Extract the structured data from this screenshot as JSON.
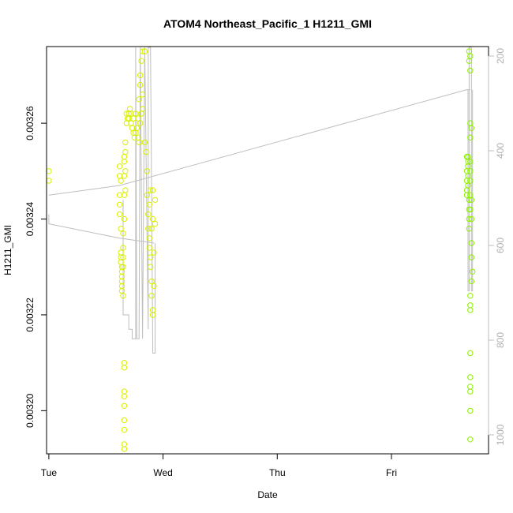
{
  "chart_data": {
    "type": "scatter",
    "title": "ATOM4 Northeast_Pacific_1 H1211_GMI",
    "xlabel": "Date",
    "ylabel": "H1211_GMI",
    "x_ticks": [
      "Tue",
      "Wed",
      "Thu",
      "Fri"
    ],
    "xlim_days": [
      -0.02,
      3.85
    ],
    "ylim": [
      0.003191,
      0.003276
    ],
    "y_ticks": [
      0.0032,
      0.00322,
      0.00324,
      0.00326
    ],
    "y_tick_labels": [
      "0.00320",
      "0.00322",
      "0.00324",
      "0.00326"
    ],
    "right_axis": {
      "lim": [
        1040,
        180
      ],
      "ticks": [
        200,
        400,
        600,
        800,
        1000
      ],
      "color": "#bebebe"
    },
    "points_wed": [
      [
        0.0,
        0.003248
      ],
      [
        0.0,
        0.00325
      ],
      [
        0.62,
        0.003251
      ],
      [
        0.62,
        0.003249
      ],
      [
        0.62,
        0.003245
      ],
      [
        0.62,
        0.003243
      ],
      [
        0.62,
        0.003241
      ],
      [
        0.63,
        0.003248
      ],
      [
        0.63,
        0.003238
      ],
      [
        0.63,
        0.003233
      ],
      [
        0.63,
        0.003232
      ],
      [
        0.63,
        0.003231
      ],
      [
        0.64,
        0.00323
      ],
      [
        0.64,
        0.003229
      ],
      [
        0.64,
        0.003228
      ],
      [
        0.64,
        0.003227
      ],
      [
        0.64,
        0.003226
      ],
      [
        0.64,
        0.003225
      ],
      [
        0.65,
        0.003224
      ],
      [
        0.65,
        0.00323
      ],
      [
        0.65,
        0.003232
      ],
      [
        0.65,
        0.003234
      ],
      [
        0.65,
        0.003237
      ],
      [
        0.66,
        0.00324
      ],
      [
        0.66,
        0.003245
      ],
      [
        0.66,
        0.003249
      ],
      [
        0.66,
        0.003252
      ],
      [
        0.66,
        0.003253
      ],
      [
        0.66,
        0.00321
      ],
      [
        0.66,
        0.003209
      ],
      [
        0.66,
        0.003204
      ],
      [
        0.66,
        0.003203
      ],
      [
        0.66,
        0.003201
      ],
      [
        0.66,
        0.003198
      ],
      [
        0.66,
        0.003196
      ],
      [
        0.66,
        0.003193
      ],
      [
        0.66,
        0.003192
      ],
      [
        0.67,
        0.003246
      ],
      [
        0.67,
        0.00325
      ],
      [
        0.67,
        0.003254
      ],
      [
        0.67,
        0.003256
      ],
      [
        0.68,
        0.00326
      ],
      [
        0.68,
        0.003262
      ],
      [
        0.69,
        0.003261
      ],
      [
        0.7,
        0.003262
      ],
      [
        0.71,
        0.003263
      ],
      [
        0.72,
        0.003262
      ],
      [
        0.73,
        0.003259
      ],
      [
        0.74,
        0.003258
      ],
      [
        0.75,
        0.003257
      ],
      [
        0.76,
        0.003258
      ],
      [
        0.77,
        0.003259
      ],
      [
        0.78,
        0.003257
      ],
      [
        0.79,
        0.003256
      ],
      [
        0.8,
        0.00326
      ],
      [
        0.81,
        0.003262
      ],
      [
        0.82,
        0.003263
      ],
      [
        0.7,
        0.003261
      ],
      [
        0.72,
        0.00326
      ],
      [
        0.74,
        0.003261
      ],
      [
        0.76,
        0.003262
      ],
      [
        0.78,
        0.003261
      ],
      [
        0.79,
        0.003265
      ],
      [
        0.8,
        0.00327
      ],
      [
        0.81,
        0.003273
      ],
      [
        0.82,
        0.003275
      ],
      [
        0.84,
        0.003275
      ],
      [
        0.8,
        0.003268
      ],
      [
        0.82,
        0.003266
      ],
      [
        0.84,
        0.003256
      ],
      [
        0.85,
        0.003254
      ],
      [
        0.86,
        0.00325
      ],
      [
        0.86,
        0.003245
      ],
      [
        0.87,
        0.003241
      ],
      [
        0.87,
        0.003238
      ],
      [
        0.88,
        0.003236
      ],
      [
        0.88,
        0.003234
      ],
      [
        0.89,
        0.003232
      ],
      [
        0.89,
        0.00323
      ],
      [
        0.9,
        0.003227
      ],
      [
        0.9,
        0.003224
      ],
      [
        0.91,
        0.003221
      ],
      [
        0.91,
        0.00322
      ],
      [
        0.88,
        0.003243
      ],
      [
        0.89,
        0.003246
      ],
      [
        0.9,
        0.003238
      ],
      [
        0.91,
        0.003246
      ],
      [
        0.91,
        0.00324
      ],
      [
        0.92,
        0.003233
      ],
      [
        0.92,
        0.003226
      ],
      [
        0.93,
        0.003244
      ],
      [
        0.93,
        0.003239
      ]
    ],
    "points_fri": [
      [
        3.66,
        0.003253
      ],
      [
        3.66,
        0.00325
      ],
      [
        3.66,
        0.003248
      ],
      [
        3.66,
        0.003246
      ],
      [
        3.66,
        0.003245
      ],
      [
        3.67,
        0.003253
      ],
      [
        3.67,
        0.003252
      ],
      [
        3.67,
        0.003251
      ],
      [
        3.67,
        0.003249
      ],
      [
        3.67,
        0.003247
      ],
      [
        3.68,
        0.003244
      ],
      [
        3.68,
        0.003242
      ],
      [
        3.68,
        0.00324
      ],
      [
        3.68,
        0.003238
      ],
      [
        3.69,
        0.003252
      ],
      [
        3.69,
        0.00325
      ],
      [
        3.69,
        0.003248
      ],
      [
        3.69,
        0.003245
      ],
      [
        3.69,
        0.003242
      ],
      [
        3.7,
        0.003244
      ],
      [
        3.7,
        0.00324
      ],
      [
        3.68,
        0.003275
      ],
      [
        3.69,
        0.003274
      ],
      [
        3.68,
        0.003273
      ],
      [
        3.69,
        0.003271
      ],
      [
        3.69,
        0.00326
      ],
      [
        3.7,
        0.003259
      ],
      [
        3.69,
        0.003257
      ],
      [
        3.7,
        0.003235
      ],
      [
        3.7,
        0.003232
      ],
      [
        3.71,
        0.003229
      ],
      [
        3.7,
        0.003227
      ],
      [
        3.69,
        0.003224
      ],
      [
        3.69,
        0.003222
      ],
      [
        3.69,
        0.003221
      ],
      [
        3.69,
        0.003212
      ],
      [
        3.69,
        0.003207
      ],
      [
        3.69,
        0.003205
      ],
      [
        3.69,
        0.003204
      ],
      [
        3.69,
        0.0032
      ],
      [
        3.69,
        0.003194
      ]
    ],
    "line_wed": [
      [
        0.0,
        0.003241
      ],
      [
        0.0,
        0.003239
      ],
      [
        0.62,
        0.003236
      ],
      [
        0.92,
        0.003235
      ]
    ],
    "line_upper": [
      [
        0.0,
        0.003245
      ],
      [
        0.62,
        0.003247
      ],
      [
        3.66,
        0.003267
      ],
      [
        3.69,
        0.003267
      ]
    ],
    "verticals": [
      [
        [
          0.65,
          0.003244
        ],
        [
          0.65,
          0.00322
        ],
        [
          0.7,
          0.00322
        ],
        [
          0.7,
          0.003217
        ],
        [
          0.73,
          0.003217
        ],
        [
          0.73,
          0.003215
        ],
        [
          0.76,
          0.003215
        ],
        [
          0.76,
          0.003276
        ],
        [
          0.77,
          0.003215
        ],
        [
          0.79,
          0.003215
        ],
        [
          0.8,
          0.003276
        ],
        [
          0.82,
          0.003215
        ],
        [
          0.84,
          0.003276
        ],
        [
          0.87,
          0.003217
        ],
        [
          0.87,
          0.003276
        ],
        [
          0.89,
          0.003276
        ],
        [
          0.91,
          0.003212
        ],
        [
          0.93,
          0.003212
        ],
        [
          0.93,
          0.003235
        ]
      ],
      [
        [
          3.67,
          0.003267
        ],
        [
          3.67,
          0.003225
        ],
        [
          3.68,
          0.003225
        ],
        [
          3.68,
          0.003276
        ],
        [
          3.7,
          0.003276
        ],
        [
          3.7,
          0.003225
        ],
        [
          3.71,
          0.003225
        ],
        [
          3.71,
          0.003267
        ]
      ]
    ],
    "point_color_wed": "#d8f000",
    "point_color_fri": "#8cf000",
    "line_color": "#bebebe"
  }
}
